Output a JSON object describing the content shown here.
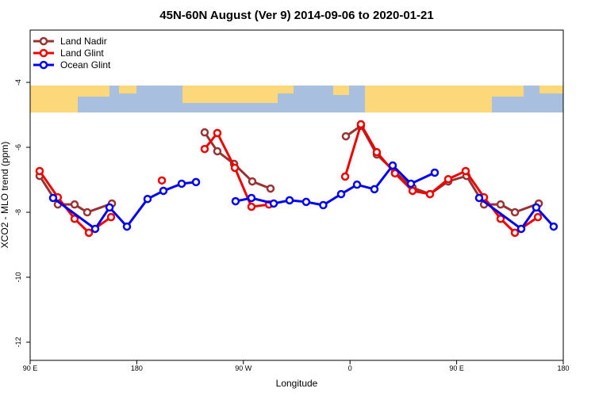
{
  "chart_data": {
    "type": "line",
    "title": "45N-60N August (Ver 9)   2014-09-06 to 2020-01-21",
    "x_label": "Longitude",
    "y_label": "XCO2 - MLO trend (ppm)",
    "xlim": [
      90,
      540
    ],
    "ylim": [
      -12.56,
      -2.39
    ],
    "xticks": [
      {
        "value": 90,
        "label": "90 E"
      },
      180,
      {
        "value": 270,
        "label": "90 W"
      },
      {
        "value": 360,
        "label": "0"
      },
      {
        "value": 450,
        "label": "90 E"
      },
      {
        "value": 540,
        "label": "180"
      }
    ],
    "yticks": [
      -12,
      -10,
      -8,
      -6,
      -4
    ],
    "legend": "top-left",
    "series": [
      {
        "name": "Land Nadir",
        "color": "#993333",
        "x": [
          98.0,
          113.4,
          127.5,
          138.2,
          159.0,
          null,
          237.3,
          248.0,
          262.1,
          277.5,
          292.9,
          null,
          356.5,
          369.2,
          382.6,
          398.0,
          412.8,
          427.5,
          442.9,
          458.3,
          473.1,
          487.1,
          499.2,
          519.3
        ],
        "values": [
          -6.88,
          -7.76,
          -7.76,
          -8.0,
          -7.73,
          null,
          -5.54,
          -6.12,
          -6.51,
          -7.05,
          -7.27,
          null,
          -5.66,
          -5.34,
          -6.22,
          -6.76,
          -7.24,
          -7.44,
          -7.05,
          -6.88,
          -7.76,
          -7.76,
          -8.0,
          -7.73
        ]
      },
      {
        "name": "Land Glint",
        "color": "#ee0000",
        "x": [
          98.0,
          113.4,
          127.5,
          139.6,
          158.3,
          null,
          201.2,
          null,
          237.3,
          248.0,
          262.8,
          276.8,
          291.6,
          null,
          355.9,
          369.2,
          382.6,
          398.0,
          412.8,
          427.5,
          442.9,
          457.6,
          473.1,
          487.1,
          499.2,
          518.6
        ],
        "values": [
          -6.73,
          -7.54,
          -8.2,
          -8.63,
          -8.15,
          null,
          -7.02,
          null,
          -6.05,
          -5.56,
          -6.63,
          -7.83,
          -7.76,
          null,
          -6.9,
          -5.29,
          -6.15,
          -6.8,
          -7.34,
          -7.44,
          -6.98,
          -6.73,
          -7.54,
          -8.2,
          -8.63,
          -8.15
        ]
      },
      {
        "name": "Ocean Glint",
        "color": "#0000ee",
        "x": [
          109.4,
          144.9,
          157.0,
          171.7,
          189.1,
          202.5,
          217.9,
          230.0,
          null,
          263.4,
          276.8,
          295.6,
          309.0,
          323.0,
          337.4,
          352.5,
          365.9,
          380.6,
          396.0,
          411.4,
          431.5,
          null,
          469.0,
          504.5,
          517.2,
          531.9
        ],
        "values": [
          -7.56,
          -8.51,
          -7.85,
          -8.44,
          -7.59,
          -7.34,
          -7.12,
          -7.07,
          null,
          -7.66,
          -7.56,
          -7.73,
          -7.63,
          -7.68,
          -7.78,
          -7.44,
          -7.15,
          -7.29,
          -6.56,
          -7.12,
          -6.78,
          null,
          -7.56,
          -8.51,
          -7.85,
          -8.44
        ]
      }
    ]
  }
}
